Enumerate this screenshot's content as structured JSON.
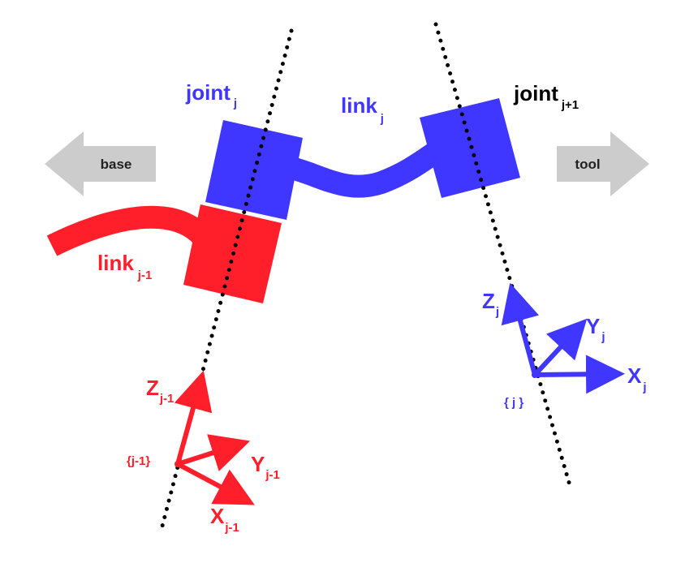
{
  "colors": {
    "prev": "#ff1f2b",
    "curr": "#3f37ff",
    "dark": "#000000",
    "arrow": "#cccccc",
    "arrow_text": "#222222"
  },
  "arrows": {
    "base": "base",
    "tool": "tool"
  },
  "joints": {
    "j": {
      "main": "joint",
      "sub": "j"
    },
    "j1": {
      "main": "joint",
      "sub": "j+1"
    }
  },
  "links": {
    "j": {
      "main": "link",
      "sub": "j"
    },
    "jm1": {
      "main": "link",
      "sub": "j-1"
    }
  },
  "frames": {
    "prev": {
      "origin": "{j-1}",
      "z": {
        "main": "Z",
        "sub": "j-1"
      },
      "y": {
        "main": "Y",
        "sub": "j-1"
      },
      "x": {
        "main": "X",
        "sub": "j-1"
      }
    },
    "curr": {
      "origin": "{ j }",
      "z": {
        "main": "Z",
        "sub": "j"
      },
      "y": {
        "main": "Y",
        "sub": "j"
      },
      "x": {
        "main": "X",
        "sub": "j"
      }
    }
  }
}
